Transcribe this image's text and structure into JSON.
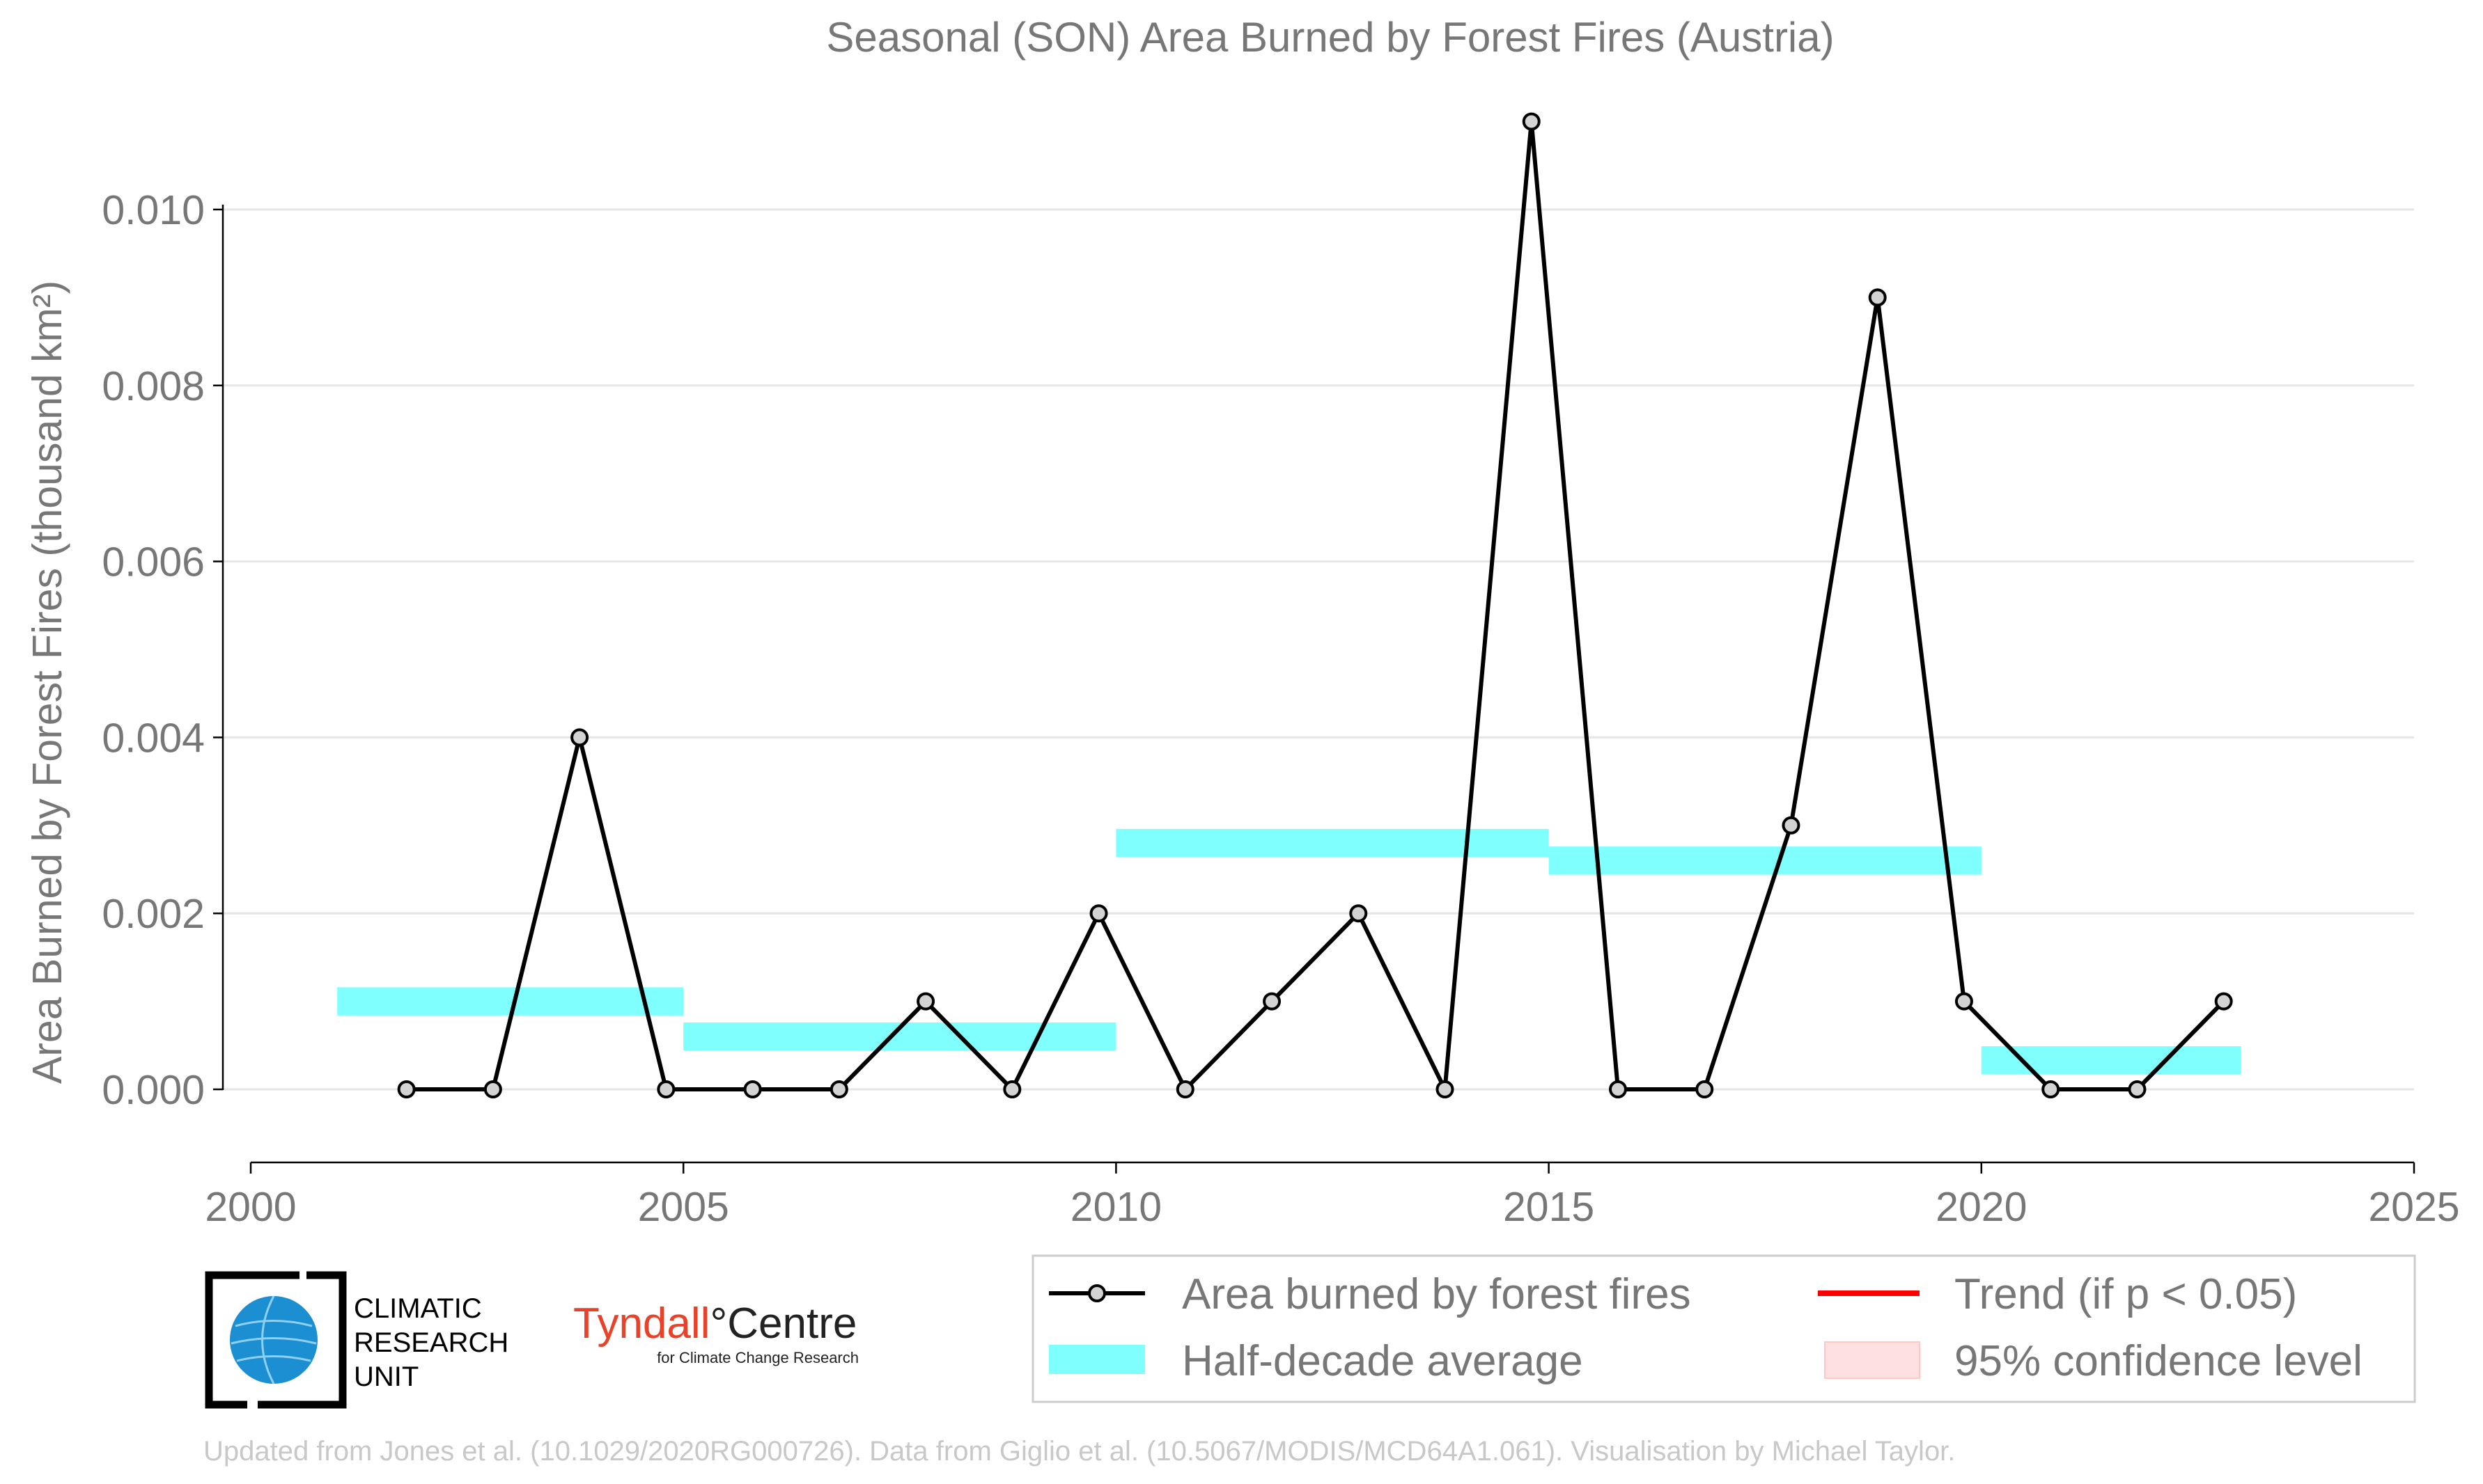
{
  "colors": {
    "line": "#000000",
    "marker_fill": "#d3d3d3",
    "half_decade": "#80ffff",
    "trend": "#ff0000",
    "confidence": "#ffe0e0",
    "grid": "#e6e6e6",
    "text": "#777777",
    "tyndall_red": "#e8432a",
    "cru_blue": "#1b8fd1"
  },
  "chart_data": {
    "type": "line",
    "title": "Seasonal (SON) Area Burned by Forest Fires (Austria)",
    "ylabel": "Area Burned by Forest Fires (thousand km²)",
    "xlabel": "",
    "xlim": [
      2000,
      2025
    ],
    "ylim": [
      -0.00083,
      0.0115
    ],
    "x_ticks": [
      2000,
      2005,
      2010,
      2015,
      2020,
      2025
    ],
    "y_ticks": [
      0.0,
      0.002,
      0.004,
      0.006,
      0.008,
      0.01
    ],
    "y_tick_labels": [
      "0.000",
      "0.002",
      "0.004",
      "0.006",
      "0.008",
      "0.010"
    ],
    "grid": "horizontal",
    "series": [
      {
        "name": "Area burned by forest fires",
        "x": [
          2001.8,
          2002.8,
          2003.8,
          2004.8,
          2005.8,
          2006.8,
          2007.8,
          2008.8,
          2009.8,
          2010.8,
          2011.8,
          2012.8,
          2013.8,
          2014.8,
          2015.8,
          2016.8,
          2017.8,
          2018.8,
          2019.8,
          2020.8,
          2021.8,
          2022.8
        ],
        "values": [
          0.0,
          0.0,
          0.004,
          0.0,
          0.0,
          0.0,
          0.001,
          0.0,
          0.002,
          0.0,
          0.001,
          0.002,
          0.0,
          0.011,
          0.0,
          0.0,
          0.003,
          0.009,
          0.001,
          0.0,
          0.0,
          0.001
        ]
      }
    ],
    "half_decade_average": {
      "name": "Half-decade average",
      "segments": [
        {
          "x0": 2001.0,
          "x1": 2005.0,
          "value": 0.001
        },
        {
          "x0": 2005.0,
          "x1": 2010.0,
          "value": 0.0006
        },
        {
          "x0": 2010.0,
          "x1": 2015.0,
          "value": 0.0028
        },
        {
          "x0": 2015.0,
          "x1": 2020.0,
          "value": 0.0026
        },
        {
          "x0": 2020.0,
          "x1": 2023.0,
          "value": 0.00033
        }
      ],
      "band_halfwidth": 0.00016
    },
    "legend": {
      "placement": "bottom-right",
      "entries": [
        {
          "label": "Area burned by forest fires",
          "kind": "line-marker"
        },
        {
          "label": "Trend (if p < 0.05)",
          "kind": "line-red"
        },
        {
          "label": "Half-decade average",
          "kind": "band-cyan"
        },
        {
          "label": "95% confidence level",
          "kind": "band-pink"
        }
      ]
    }
  },
  "logos": {
    "cru_lines": [
      "CLIMATIC",
      "RESEARCH",
      "UNIT"
    ],
    "tyndall_part1": "Tyndall",
    "tyndall_part2": "°Centre",
    "tyndall_sub": "for Climate Change Research"
  },
  "footer": "Updated from Jones et al. (10.1029/2020RG000726). Data from Giglio et al. (10.5067/MODIS/MCD64A1.061). Visualisation by Michael Taylor."
}
